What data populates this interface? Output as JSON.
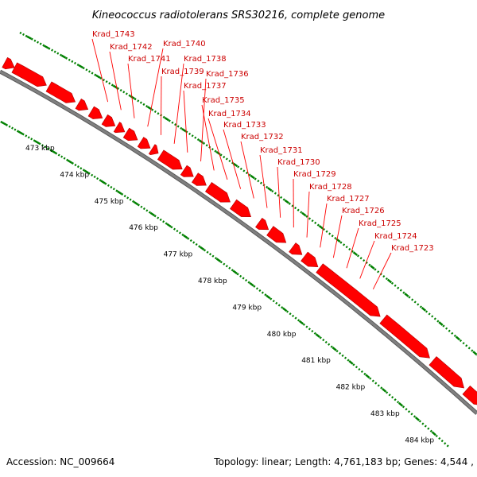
{
  "title": "Kineococcus radiotolerans SRS30216, complete genome",
  "footer": {
    "accession": "Accession: NC_009664",
    "stats": "Topology: linear; Length: 4,761,183 bp; Genes: 4,544 ,"
  },
  "colors": {
    "gene": "#ff0000",
    "gene_label": "#cc0000",
    "backbone": "#808080",
    "tick": "#008000"
  },
  "genes": [
    "Krad_1743",
    "Krad_1742",
    "Krad_1741",
    "Krad_1740",
    "Krad_1739",
    "Krad_1738",
    "Krad_1737",
    "Krad_1736",
    "Krad_1735",
    "Krad_1734",
    "Krad_1733",
    "Krad_1732",
    "Krad_1731",
    "Krad_1730",
    "Krad_1729",
    "Krad_1728",
    "Krad_1727",
    "Krad_1726",
    "Krad_1725",
    "Krad_1724",
    "Krad_1723"
  ],
  "ticks": [
    "473 kbp",
    "474 kbp",
    "475 kbp",
    "476 kbp",
    "477 kbp",
    "478 kbp",
    "479 kbp",
    "480 kbp",
    "481 kbp",
    "482 kbp",
    "483 kbp",
    "484 kbp"
  ]
}
